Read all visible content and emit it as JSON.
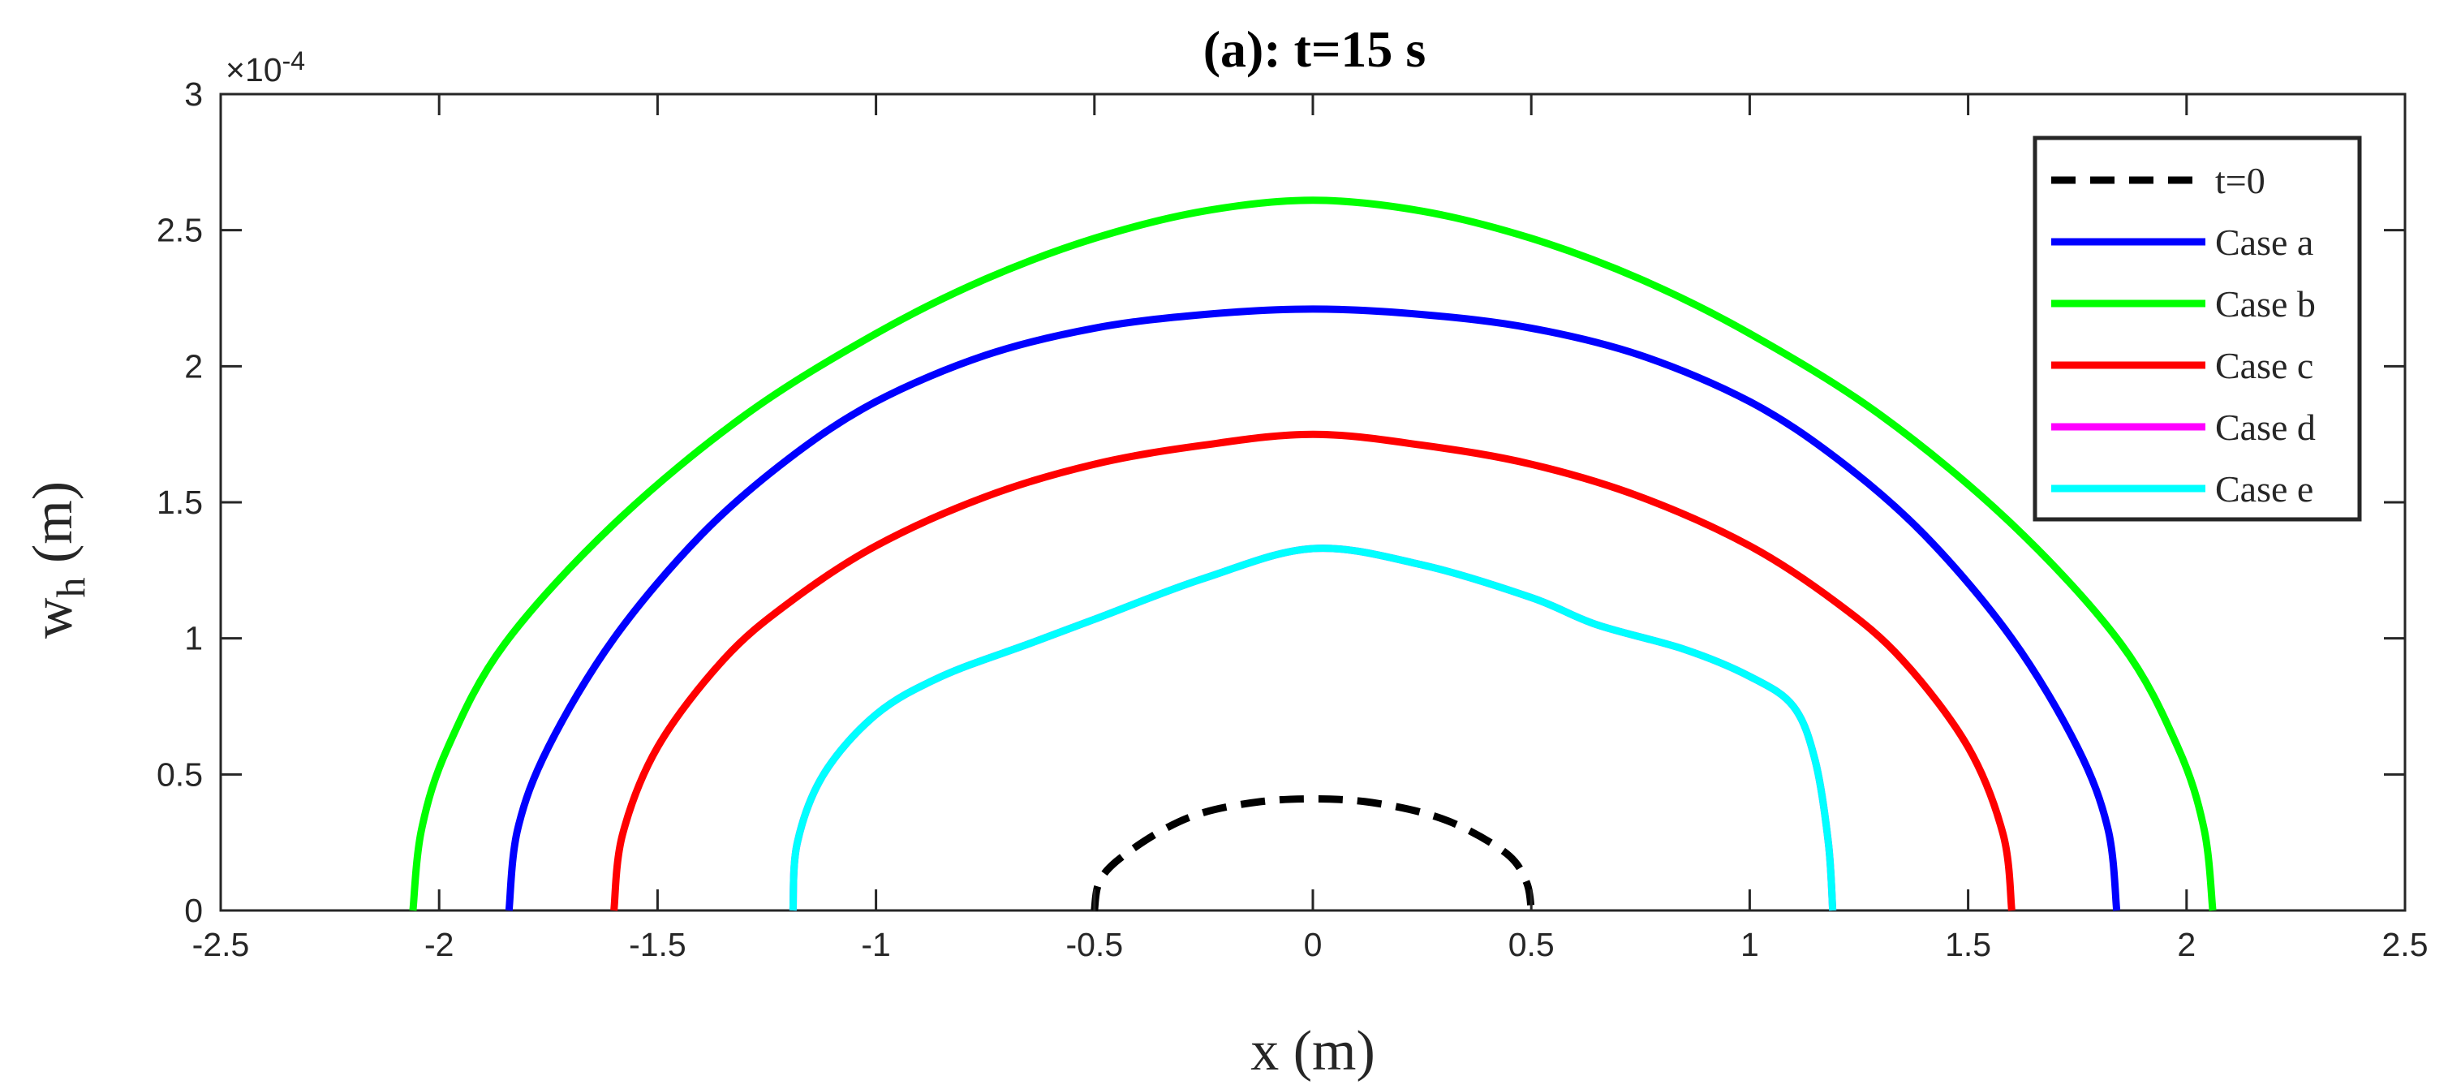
{
  "chart_data": {
    "type": "line",
    "title": "(a): t=15 s",
    "xlabel": "x (m)",
    "ylabel_main": "w",
    "ylabel_sub": "h",
    "ylabel_unit": " (m)",
    "y_exponent_prefix": "×10",
    "y_exponent_power": "-4",
    "xlim": [
      -2.5,
      2.5
    ],
    "ylim": [
      0,
      3
    ],
    "x_ticks": [
      -2.5,
      -2,
      -1.5,
      -1,
      -0.5,
      0,
      0.5,
      1,
      1.5,
      2,
      2.5
    ],
    "x_tick_labels": [
      "-2.5",
      "-2",
      "-1.5",
      "-1",
      "-0.5",
      "0",
      "0.5",
      "1",
      "1.5",
      "2",
      "2.5"
    ],
    "y_ticks": [
      0,
      0.5,
      1,
      1.5,
      2,
      2.5,
      3
    ],
    "y_tick_labels": [
      "0",
      "0.5",
      "1",
      "1.5",
      "2",
      "2.5",
      "3"
    ],
    "grid": false,
    "legend_position": "top-right",
    "series": [
      {
        "name": "t=0",
        "color": "#000000",
        "dash": "dashed",
        "points": [
          [
            -0.5,
            0.0
          ],
          [
            -0.49,
            0.1
          ],
          [
            -0.45,
            0.18
          ],
          [
            -0.35,
            0.29
          ],
          [
            -0.25,
            0.36
          ],
          [
            -0.12,
            0.4
          ],
          [
            0.0,
            0.41
          ],
          [
            0.12,
            0.4
          ],
          [
            0.25,
            0.36
          ],
          [
            0.35,
            0.3
          ],
          [
            0.45,
            0.2
          ],
          [
            0.49,
            0.1
          ],
          [
            0.5,
            0.0
          ]
        ]
      },
      {
        "name": "Case a",
        "color": "#0000ff",
        "dash": "solid",
        "points": [
          [
            -1.84,
            0.0
          ],
          [
            -1.82,
            0.3
          ],
          [
            -1.75,
            0.6
          ],
          [
            -1.6,
            1.0
          ],
          [
            -1.4,
            1.38
          ],
          [
            -1.2,
            1.66
          ],
          [
            -1.0,
            1.87
          ],
          [
            -0.75,
            2.04
          ],
          [
            -0.5,
            2.14
          ],
          [
            -0.25,
            2.19
          ],
          [
            0.0,
            2.21
          ],
          [
            0.25,
            2.19
          ],
          [
            0.5,
            2.14
          ],
          [
            0.75,
            2.04
          ],
          [
            1.0,
            1.87
          ],
          [
            1.2,
            1.66
          ],
          [
            1.4,
            1.38
          ],
          [
            1.6,
            1.0
          ],
          [
            1.75,
            0.6
          ],
          [
            1.82,
            0.3
          ],
          [
            1.84,
            0.0
          ]
        ]
      },
      {
        "name": "Case b",
        "color": "#00ff00",
        "dash": "solid",
        "points": [
          [
            -2.06,
            0.0
          ],
          [
            -2.04,
            0.3
          ],
          [
            -1.98,
            0.6
          ],
          [
            -1.85,
            0.98
          ],
          [
            -1.6,
            1.42
          ],
          [
            -1.3,
            1.82
          ],
          [
            -1.0,
            2.12
          ],
          [
            -0.75,
            2.32
          ],
          [
            -0.5,
            2.47
          ],
          [
            -0.25,
            2.57
          ],
          [
            0.0,
            2.61
          ],
          [
            0.25,
            2.57
          ],
          [
            0.5,
            2.47
          ],
          [
            0.75,
            2.32
          ],
          [
            1.0,
            2.12
          ],
          [
            1.3,
            1.82
          ],
          [
            1.6,
            1.42
          ],
          [
            1.85,
            0.98
          ],
          [
            1.98,
            0.6
          ],
          [
            2.04,
            0.3
          ],
          [
            2.06,
            0.0
          ]
        ]
      },
      {
        "name": "Case c",
        "color": "#ff0000",
        "dash": "solid",
        "points": [
          [
            -1.6,
            0.0
          ],
          [
            -1.58,
            0.28
          ],
          [
            -1.5,
            0.6
          ],
          [
            -1.35,
            0.92
          ],
          [
            -1.2,
            1.13
          ],
          [
            -1.0,
            1.34
          ],
          [
            -0.75,
            1.52
          ],
          [
            -0.5,
            1.64
          ],
          [
            -0.25,
            1.71
          ],
          [
            0.0,
            1.75
          ],
          [
            0.25,
            1.71
          ],
          [
            0.5,
            1.64
          ],
          [
            0.75,
            1.52
          ],
          [
            1.0,
            1.34
          ],
          [
            1.2,
            1.13
          ],
          [
            1.35,
            0.92
          ],
          [
            1.5,
            0.6
          ],
          [
            1.58,
            0.28
          ],
          [
            1.6,
            0.0
          ]
        ]
      },
      {
        "name": "Case d",
        "color": "#ff00ff",
        "dash": "solid",
        "points": [
          [
            -1.19,
            0.0
          ],
          [
            -1.18,
            0.25
          ],
          [
            -1.12,
            0.5
          ],
          [
            -1.0,
            0.72
          ],
          [
            -0.85,
            0.86
          ],
          [
            -0.65,
            0.98
          ],
          [
            -0.5,
            1.07
          ],
          [
            -0.25,
            1.22
          ],
          [
            0.0,
            1.33
          ],
          [
            0.25,
            1.27
          ],
          [
            0.5,
            1.15
          ],
          [
            0.65,
            1.05
          ],
          [
            0.85,
            0.96
          ],
          [
            1.0,
            0.86
          ],
          [
            1.1,
            0.75
          ],
          [
            1.15,
            0.55
          ],
          [
            1.18,
            0.25
          ],
          [
            1.19,
            0.0
          ]
        ]
      },
      {
        "name": "Case e",
        "color": "#00ffff",
        "dash": "solid",
        "points": [
          [
            -1.19,
            0.0
          ],
          [
            -1.18,
            0.25
          ],
          [
            -1.12,
            0.5
          ],
          [
            -1.0,
            0.72
          ],
          [
            -0.85,
            0.86
          ],
          [
            -0.65,
            0.98
          ],
          [
            -0.5,
            1.07
          ],
          [
            -0.25,
            1.22
          ],
          [
            0.0,
            1.33
          ],
          [
            0.25,
            1.27
          ],
          [
            0.5,
            1.15
          ],
          [
            0.65,
            1.05
          ],
          [
            0.85,
            0.96
          ],
          [
            1.0,
            0.86
          ],
          [
            1.1,
            0.75
          ],
          [
            1.15,
            0.55
          ],
          [
            1.18,
            0.25
          ],
          [
            1.19,
            0.0
          ]
        ]
      }
    ]
  }
}
